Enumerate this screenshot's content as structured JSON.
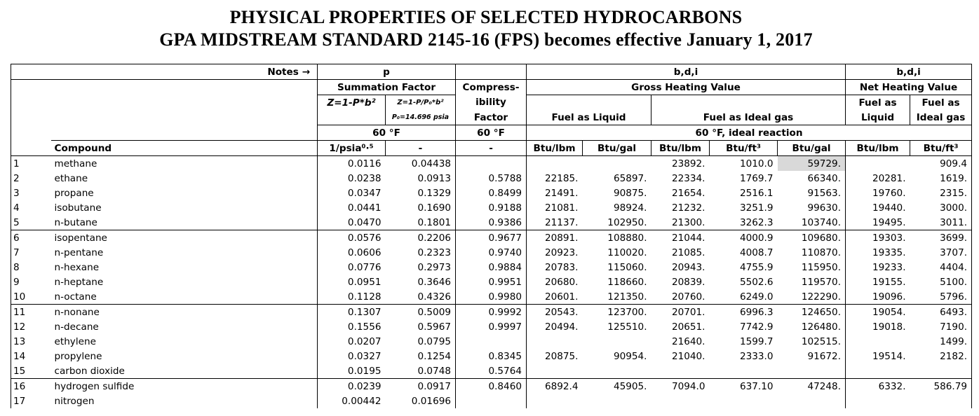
{
  "title_line1": "PHYSICAL PROPERTIES OF SELECTED HYDROCARBONS",
  "title_line2": "GPA MIDSTREAM STANDARD 2145-16 (FPS) becomes effective January 1, 2017",
  "header": {
    "notes_label": "Notes →",
    "note_p": "p",
    "note_bdi_gross": "b,d,i",
    "note_bdi_net": "b,d,i",
    "summation_factor": "Summation Factor",
    "compress_1": "Compress-",
    "compress_2": "ibility",
    "compress_3": "Factor",
    "gross_heating": "Gross Heating Value",
    "net_heating": "Net Heating Value",
    "z_formula_1": "Z=1-P*b²",
    "z_formula_2": "Z=1-P/P₀*b²",
    "p0": "P₀=14.696 psia",
    "fuel_liquid": "Fuel as Liquid",
    "fuel_ideal_gas": "Fuel as Ideal gas",
    "net_fuel_liquid_1": "Fuel as",
    "net_fuel_liquid_2": "Liquid",
    "net_fuel_gas_1": "Fuel as",
    "net_fuel_gas_2": "Ideal gas",
    "temp_60f": "60 °F",
    "temp_60f_2": "60 °F",
    "temp_ideal": "60 °F, ideal reaction",
    "compound": "Compound",
    "unit_psia": "1/psia⁰·⁵",
    "unit_dash1": "-",
    "unit_dash2": "-",
    "unit_btulbm_1": "Btu/lbm",
    "unit_btugal_1": "Btu/gal",
    "unit_btulbm_2": "Btu/lbm",
    "unit_btuft3_1": "Btu/ft³",
    "unit_btugal_2": "Btu/gal",
    "unit_btulbm_3": "Btu/lbm",
    "unit_btuft3_2": "Btu/ft³"
  },
  "rows": [
    {
      "no": "1",
      "name": "methane",
      "sf1": "0.0116",
      "sf2": "0.04438",
      "z": "",
      "gl_lbm": "",
      "gl_gal": "",
      "gg_lbm": "23892.",
      "gg_ft3": "1010.0",
      "gg_gal": "59729.",
      "nl_lbm": "",
      "ng_ft3": "909.4"
    },
    {
      "no": "2",
      "name": "ethane",
      "sf1": "0.0238",
      "sf2": "0.0913",
      "z": "0.5788",
      "gl_lbm": "22185.",
      "gl_gal": "65897.",
      "gg_lbm": "22334.",
      "gg_ft3": "1769.7",
      "gg_gal": "66340.",
      "nl_lbm": "20281.",
      "ng_ft3": "1619."
    },
    {
      "no": "3",
      "name": "propane",
      "sf1": "0.0347",
      "sf2": "0.1329",
      "z": "0.8499",
      "gl_lbm": "21491.",
      "gl_gal": "90875.",
      "gg_lbm": "21654.",
      "gg_ft3": "2516.1",
      "gg_gal": "91563.",
      "nl_lbm": "19760.",
      "ng_ft3": "2315."
    },
    {
      "no": "4",
      "name": "isobutane",
      "sf1": "0.0441",
      "sf2": "0.1690",
      "z": "0.9188",
      "gl_lbm": "21081.",
      "gl_gal": "98924.",
      "gg_lbm": "21232.",
      "gg_ft3": "3251.9",
      "gg_gal": "99630.",
      "nl_lbm": "19440.",
      "ng_ft3": "3000."
    },
    {
      "no": "5",
      "name": "n-butane",
      "sf1": "0.0470",
      "sf2": "0.1801",
      "z": "0.9386",
      "gl_lbm": "21137.",
      "gl_gal": "102950.",
      "gg_lbm": "21300.",
      "gg_ft3": "3262.3",
      "gg_gal": "103740.",
      "nl_lbm": "19495.",
      "ng_ft3": "3011."
    },
    {
      "no": "6",
      "name": "isopentane",
      "sf1": "0.0576",
      "sf2": "0.2206",
      "z": "0.9677",
      "gl_lbm": "20891.",
      "gl_gal": "108880.",
      "gg_lbm": "21044.",
      "gg_ft3": "4000.9",
      "gg_gal": "109680.",
      "nl_lbm": "19303.",
      "ng_ft3": "3699."
    },
    {
      "no": "7",
      "name": "n-pentane",
      "sf1": "0.0606",
      "sf2": "0.2323",
      "z": "0.9740",
      "gl_lbm": "20923.",
      "gl_gal": "110020.",
      "gg_lbm": "21085.",
      "gg_ft3": "4008.7",
      "gg_gal": "110870.",
      "nl_lbm": "19335.",
      "ng_ft3": "3707."
    },
    {
      "no": "8",
      "name": "n-hexane",
      "sf1": "0.0776",
      "sf2": "0.2973",
      "z": "0.9884",
      "gl_lbm": "20783.",
      "gl_gal": "115060.",
      "gg_lbm": "20943.",
      "gg_ft3": "4755.9",
      "gg_gal": "115950.",
      "nl_lbm": "19233.",
      "ng_ft3": "4404."
    },
    {
      "no": "9",
      "name": "n-heptane",
      "sf1": "0.0951",
      "sf2": "0.3646",
      "z": "0.9951",
      "gl_lbm": "20680.",
      "gl_gal": "118660.",
      "gg_lbm": "20839.",
      "gg_ft3": "5502.6",
      "gg_gal": "119570.",
      "nl_lbm": "19155.",
      "ng_ft3": "5100."
    },
    {
      "no": "10",
      "name": "n-octane",
      "sf1": "0.1128",
      "sf2": "0.4326",
      "z": "0.9980",
      "gl_lbm": "20601.",
      "gl_gal": "121350.",
      "gg_lbm": "20760.",
      "gg_ft3": "6249.0",
      "gg_gal": "122290.",
      "nl_lbm": "19096.",
      "ng_ft3": "5796."
    },
    {
      "no": "11",
      "name": "n-nonane",
      "sf1": "0.1307",
      "sf2": "0.5009",
      "z": "0.9992",
      "gl_lbm": "20543.",
      "gl_gal": "123700.",
      "gg_lbm": "20701.",
      "gg_ft3": "6996.3",
      "gg_gal": "124650.",
      "nl_lbm": "19054.",
      "ng_ft3": "6493."
    },
    {
      "no": "12",
      "name": "n-decane",
      "sf1": "0.1556",
      "sf2": "0.5967",
      "z": "0.9997",
      "gl_lbm": "20494.",
      "gl_gal": "125510.",
      "gg_lbm": "20651.",
      "gg_ft3": "7742.9",
      "gg_gal": "126480.",
      "nl_lbm": "19018.",
      "ng_ft3": "7190."
    },
    {
      "no": "13",
      "name": "ethylene",
      "sf1": "0.0207",
      "sf2": "0.0795",
      "z": "",
      "gl_lbm": "",
      "gl_gal": "",
      "gg_lbm": "21640.",
      "gg_ft3": "1599.7",
      "gg_gal": "102515.",
      "nl_lbm": "",
      "ng_ft3": "1499."
    },
    {
      "no": "14",
      "name": "propylene",
      "sf1": "0.0327",
      "sf2": "0.1254",
      "z": "0.8345",
      "gl_lbm": "20875.",
      "gl_gal": "90954.",
      "gg_lbm": "21040.",
      "gg_ft3": "2333.0",
      "gg_gal": "91672.",
      "nl_lbm": "19514.",
      "ng_ft3": "2182."
    },
    {
      "no": "15",
      "name": "carbon dioxide",
      "sf1": "0.0195",
      "sf2": "0.0748",
      "z": "0.5764",
      "gl_lbm": "",
      "gl_gal": "",
      "gg_lbm": "",
      "gg_ft3": "",
      "gg_gal": "",
      "nl_lbm": "",
      "ng_ft3": ""
    },
    {
      "no": "16",
      "name": "hydrogen sulfide",
      "sf1": "0.0239",
      "sf2": "0.0917",
      "z": "0.8460",
      "gl_lbm": "6892.4",
      "gl_gal": "45905.",
      "gg_lbm": "7094.0",
      "gg_ft3": "637.10",
      "gg_gal": "47248.",
      "nl_lbm": "6332.",
      "ng_ft3": "586.79"
    },
    {
      "no": "17",
      "name": "nitrogen",
      "sf1": "0.00442",
      "sf2": "0.01696",
      "z": "",
      "gl_lbm": "",
      "gl_gal": "",
      "gg_lbm": "",
      "gg_ft3": "",
      "gg_gal": "",
      "nl_lbm": "",
      "ng_ft3": ""
    }
  ],
  "highlight_color": "#d9d9d9"
}
